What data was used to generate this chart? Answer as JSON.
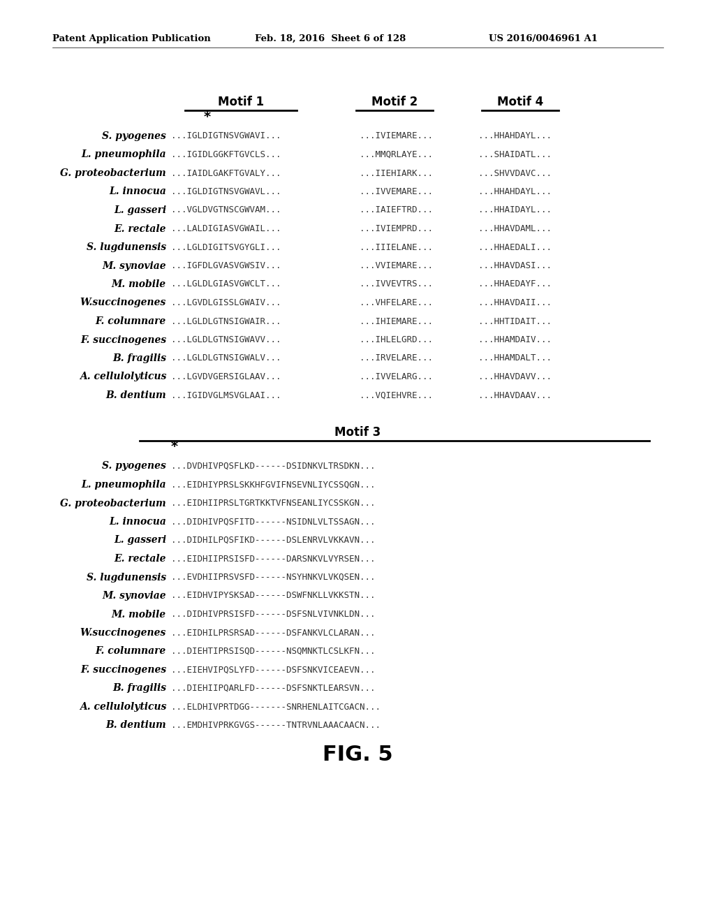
{
  "header_left": "Patent Application Publication",
  "header_mid": "Feb. 18, 2016  Sheet 6 of 128",
  "header_right": "US 2016/0046961 A1",
  "footer": "FIG. 5",
  "section1_title1": "Motif 1",
  "section1_title2": "Motif 2",
  "section1_title3": "Motif 4",
  "section1_species": [
    "S. pyogenes",
    "L. pneumophila",
    "G. proteobacterium",
    "L. innocua",
    "L. gasseri",
    "E. rectale",
    "S. lugdunensis",
    "M. synoviae",
    "M. mobile",
    "W.succinogenes",
    "F. columnare",
    "F. succinogenes",
    "B. fragilis",
    "A. cellulolyticus",
    "B. dentium"
  ],
  "section1_motif1": [
    "...IGLDIGTNSVGWAVI...",
    "...IGIDLGGKFTGVCLS...",
    "...IAIDLGAKFTGVALY...",
    "...IGLDIGTNSVGWAVL...",
    "...VGLDVGTNSCGWVAM...",
    "...LALDIGIASVGWAIL...",
    "...LGLDIGITSVGYGLI...",
    "...IGFDLGVASVGWSIV...",
    "...LGLDLGIASVGWCLT...",
    "...LGVDLGISSLGWAIV...",
    "...LGLDLGTNSIGWAIR...",
    "...LGLDLGTNSIGWAVV...",
    "...LGLDLGTNSIGWALV...",
    "...LGVDVGERSIGLAAV...",
    "...IGIDVGLMSVGLAAI..."
  ],
  "section1_motif2": [
    "...IVIEMARE...",
    "...MMQRLAYE...",
    "...IIEHIARK...",
    "...IVVEMARE...",
    "...IAIEFTRD...",
    "...IVIEMPRD...",
    "...IIIELANE...",
    "...VVIEMARE...",
    "...IVVEVTRS...",
    "...VHFELARE...",
    "...IHIEMARE...",
    "...IHLELGRD...",
    "...IRVELARE...",
    "...IVVELARG...",
    "...VQIEHVRE..."
  ],
  "section1_motif4": [
    "...HHAHDAYL...",
    "...SHAIDATL...",
    "...SHVVDAVC...",
    "...HHAHDAYL...",
    "...HHAIDAYL...",
    "...HHAVDAML...",
    "...HHAEDALI...",
    "...HHAVDASI...",
    "...HHAEDAYF...",
    "...HHAVDAII...",
    "...HHTIDAIT...",
    "...HHAMDAIV...",
    "...HHAMDALT...",
    "...HHAVDAVV...",
    "...HHAVDAAV..."
  ],
  "section2_title": "Motif 3",
  "section2_species": [
    "S. pyogenes",
    "L. pneumophila",
    "G. proteobacterium",
    "L. innocua",
    "L. gasseri",
    "E. rectale",
    "S. lugdunensis",
    "M. synoviae",
    "M. mobile",
    "W.succinogenes",
    "F. columnare",
    "F. succinogenes",
    "B. fragilis",
    "A. cellulolyticus",
    "B. dentium"
  ],
  "section2_motif3": [
    "...DVDHIVPQSFLKD------DSIDNKVLTRSDKN...",
    "...EIDHIYPRSLSKKHFGVIFNSEVNLIYCSSQGN...",
    "...EIDHIIPRSLTGRTKKTVFNSEANLIYCSSKGN...",
    "...DIDHIVPQSFITD------NSIDNLVLTSSAGN...",
    "...DIDHILPQSFIKD------DSLENRVLVKKAVN...",
    "...EIDHIIPRSISFD------DARSNKVLVYRSEN...",
    "...EVDHIIPRSVSFD------NSYHNKVLVKQSEN...",
    "...EIDHVIPYSKSAD------DSWFNKLLVKKSTN...",
    "...DIDHIVPRSISFD------DSFSNLVIVNKLDN...",
    "...EIDHILPRSRSAD------DSFANKVLCLARAN...",
    "...DIEHTIPRSISQD------NSQMNKTLCSLKFN...",
    "...EIEHVIPQSLYFD------DSFSNKVICEAEVN...",
    "...DIEHIIPQARLFD------DSFSNKTLEARSVN...",
    "...ELDHIVPRTDGG-------SNRHENLAITCGACN...",
    "...EMDHIVPRKGVGS------TNTRVNLAAACAACN..."
  ],
  "bg_color": "#ffffff",
  "text_color": "#000000",
  "seq_color": "#333333",
  "header_fs": 9.5,
  "title_fs": 12,
  "species_fs": 10,
  "seq_fs": 9,
  "footer_fs": 22,
  "asterisk_fs": 14
}
